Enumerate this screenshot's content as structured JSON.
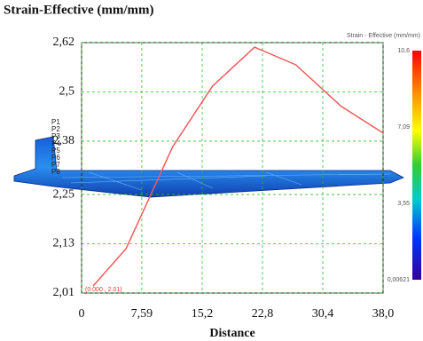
{
  "chart_data": {
    "type": "line",
    "title": "Strain-Effective (mm/mm)",
    "x_label": "Distance",
    "x": [
      1.45,
      5.6,
      11.5,
      16.5,
      21.8,
      27.0,
      32.7,
      38.0
    ],
    "series": [
      {
        "color": "#f05a5a",
        "values": [
          2.027,
          2.118,
          2.367,
          2.514,
          2.609,
          2.566,
          2.465,
          2.4
        ]
      }
    ],
    "xlim": [
      0,
      38.0
    ],
    "xticks": [
      0,
      {
        "value": 7.59,
        "label": "7,59"
      },
      {
        "value": 15.2,
        "label": "15,2"
      },
      {
        "value": 22.8,
        "label": "22,8"
      },
      {
        "value": 30.4,
        "label": "30,4"
      },
      {
        "value": 38.0,
        "label": "38,0"
      }
    ],
    "ylim": [
      2.01,
      2.62
    ],
    "yticks": [
      {
        "value": 2.01,
        "label": "2,01"
      },
      {
        "value": 2.13,
        "label": "2,13"
      },
      {
        "value": 2.25,
        "label": "2,25"
      },
      {
        "value": 2.38,
        "label": "2,38"
      },
      {
        "value": 2.5,
        "label": "2,5"
      },
      {
        "value": 2.62,
        "label": "2,62"
      }
    ],
    "grid": true,
    "annotation": "(0.000 , 2.01)",
    "point_labels": [
      "P1",
      "P2",
      "P3",
      "P4",
      "P5",
      "P6",
      "P7",
      "P8"
    ],
    "colorbar": {
      "title": "Strain - Effective (mm/mm)",
      "labels": [
        "10,6",
        "7,09",
        "3,55",
        "0,00621"
      ]
    }
  }
}
